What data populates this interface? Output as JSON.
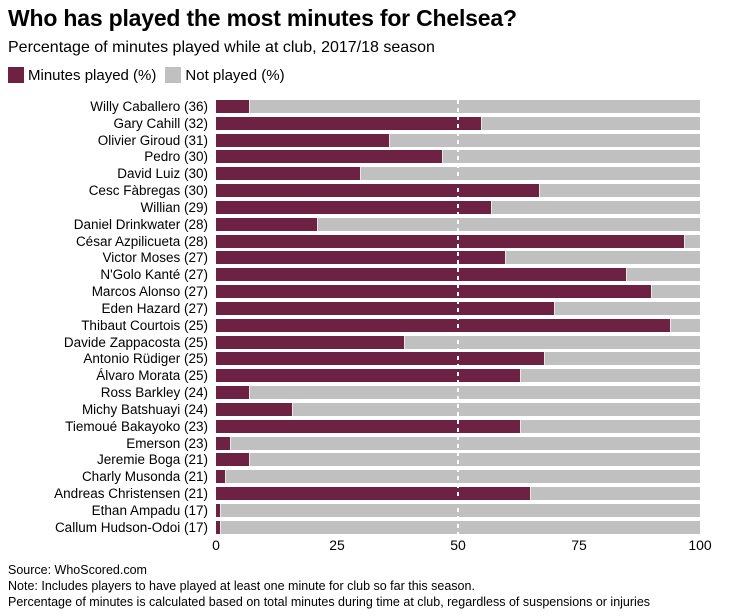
{
  "header": {
    "title": "Who has played the most minutes for Chelsea?",
    "subtitle": "Percentage of minutes played while at club, 2017/18 season"
  },
  "legend": {
    "played_label": "Minutes played (%)",
    "not_played_label": "Not played (%)"
  },
  "chart_data": {
    "type": "bar",
    "orientation": "horizontal",
    "stacked": true,
    "title": "Who has played the most minutes for Chelsea?",
    "subtitle": "Percentage of minutes played while at club, 2017/18 season",
    "categories": [
      "Willy Caballero (36)",
      "Gary Cahill (32)",
      "Olivier Giroud (31)",
      "Pedro (30)",
      "David Luiz (30)",
      "Cesc Fàbregas (30)",
      "Willian (29)",
      "Daniel Drinkwater (28)",
      "César Azpilicueta (28)",
      "Victor Moses (27)",
      "N'Golo Kanté (27)",
      "Marcos Alonso (27)",
      "Eden Hazard (27)",
      "Thibaut Courtois (25)",
      "Davide Zappacosta (25)",
      "Antonio Rüdiger (25)",
      "Álvaro Morata (25)",
      "Ross Barkley (24)",
      "Michy Batshuayi (24)",
      "Tiemoué Bakayoko (23)",
      "Emerson (23)",
      "Jeremie Boga (21)",
      "Charly Musonda (21)",
      "Andreas Christensen (21)",
      "Ethan Ampadu (17)",
      "Callum Hudson-Odoi (17)"
    ],
    "series": [
      {
        "name": "Minutes played (%)",
        "color": "#6e2243",
        "values": [
          7,
          55,
          36,
          47,
          30,
          67,
          57,
          21,
          97,
          60,
          85,
          90,
          70,
          94,
          39,
          68,
          63,
          7,
          16,
          63,
          3,
          7,
          2,
          65,
          1,
          1
        ]
      },
      {
        "name": "Not played (%)",
        "color": "#c0c0c0",
        "values": [
          93,
          45,
          64,
          53,
          70,
          33,
          43,
          79,
          3,
          40,
          15,
          10,
          30,
          6,
          61,
          32,
          37,
          93,
          84,
          37,
          97,
          93,
          98,
          35,
          99,
          99
        ]
      }
    ],
    "xlabel": "",
    "ylabel": "",
    "xlim": [
      0,
      100
    ],
    "x_ticks": [
      0,
      25,
      50,
      75,
      100
    ],
    "reference_line": 50,
    "grid": false,
    "legend_position": "top"
  },
  "footer": {
    "source": "Source: WhoScored.com",
    "note1": "Note: Includes players to have played at least one minute for club so far this season.",
    "note2": "Percentage of minutes is calculated based on total minutes during time at club, regardless of suspensions or injuries"
  }
}
